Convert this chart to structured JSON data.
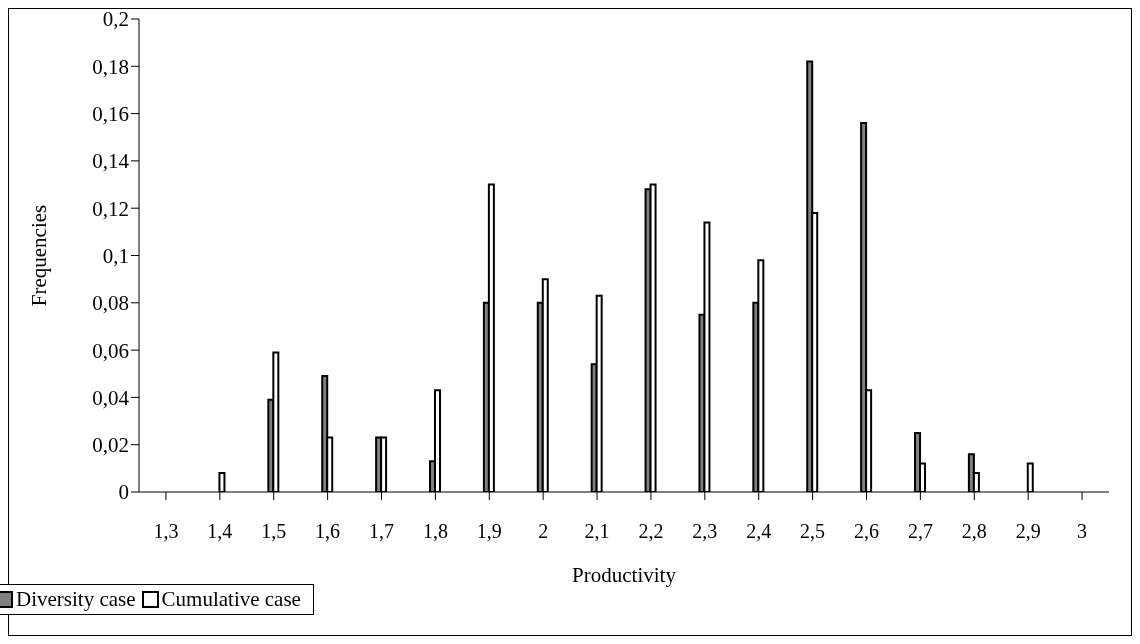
{
  "chart_data": {
    "type": "bar",
    "xlabel": "Productivity",
    "ylabel": "Frequencies",
    "categories": [
      "1,3",
      "1,4",
      "1,5",
      "1,6",
      "1,7",
      "1,8",
      "1,9",
      "2",
      "2,1",
      "2,2",
      "2,3",
      "2,4",
      "2,5",
      "2,6",
      "2,7",
      "2,8",
      "2,9",
      "3"
    ],
    "series": [
      {
        "name": "Diversity case",
        "color": "#808080",
        "values": [
          null,
          null,
          0.039,
          0.049,
          0.023,
          0.013,
          0.08,
          0.08,
          0.054,
          0.128,
          0.075,
          0.08,
          0.182,
          0.156,
          0.025,
          0.016,
          null,
          null
        ]
      },
      {
        "name": "Cumulative case",
        "color": "#ffffff",
        "values": [
          null,
          0.008,
          0.059,
          0.023,
          0.023,
          0.043,
          0.13,
          0.09,
          0.083,
          0.13,
          0.114,
          0.098,
          0.118,
          0.043,
          0.012,
          0.008,
          0.012,
          null
        ]
      }
    ],
    "ylim": [
      0,
      0.2
    ],
    "yticks": [
      0,
      {
        "value": 0.02,
        "label": "0,02"
      },
      {
        "value": 0.04,
        "label": "0,04"
      },
      {
        "value": 0.06,
        "label": "0,06"
      },
      {
        "value": 0.08,
        "label": "0,08"
      },
      {
        "value": 0.1,
        "label": "0,1"
      },
      {
        "value": 0.12,
        "label": "0,12"
      },
      {
        "value": 0.14,
        "label": "0,14"
      },
      {
        "value": 0.16,
        "label": "0,16"
      },
      {
        "value": 0.18,
        "label": "0,18"
      },
      {
        "value": 0.2,
        "label": "0,2"
      }
    ],
    "legend": "bottom left",
    "grid": false
  }
}
